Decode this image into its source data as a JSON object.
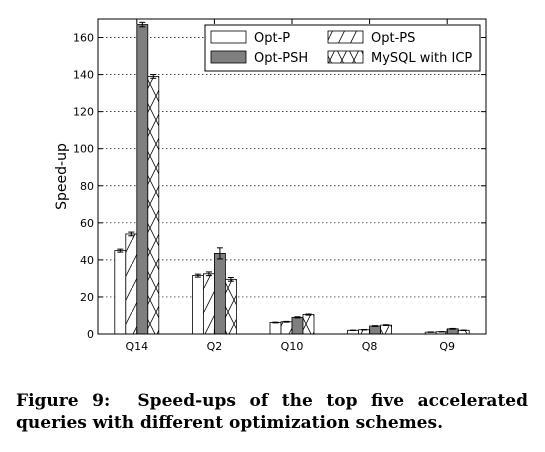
{
  "caption": {
    "label": "Figure 9:",
    "text": "Speed-ups of the top five accelerated queries with different optimization schemes."
  },
  "chart_data": {
    "type": "bar",
    "title": "",
    "xlabel": "",
    "ylabel": "Speed-up",
    "ylim": [
      0,
      170
    ],
    "yticks": [
      0,
      20,
      40,
      60,
      80,
      100,
      120,
      140,
      160
    ],
    "grid": true,
    "legend_position": "top-right",
    "categories": [
      "Q14",
      "Q2",
      "Q10",
      "Q8",
      "Q9"
    ],
    "series": [
      {
        "name": "Opt-P",
        "fill": "#ffffff",
        "pattern": "none",
        "values": [
          45,
          31.5,
          6.2,
          2.0,
          1.0
        ],
        "errors": [
          0.8,
          0.8,
          0.2,
          0.1,
          0.1
        ]
      },
      {
        "name": "Opt-PS",
        "fill": "#ffffff",
        "pattern": "diagonal",
        "values": [
          54,
          32.5,
          6.6,
          2.3,
          1.2
        ],
        "errors": [
          1.0,
          1.0,
          0.2,
          0.1,
          0.1
        ]
      },
      {
        "name": "Opt-PSH",
        "fill": "#7f7f7f",
        "pattern": "none",
        "values": [
          167,
          43.5,
          9.0,
          4.3,
          2.8
        ],
        "errors": [
          1.2,
          3.0,
          0.3,
          0.2,
          0.2
        ]
      },
      {
        "name": "MySQL with ICP",
        "fill": "#ffffff",
        "pattern": "crosshatch",
        "values": [
          139,
          29.5,
          10.5,
          4.8,
          2.0
        ],
        "errors": [
          1.0,
          1.0,
          0.3,
          0.2,
          0.1
        ]
      }
    ]
  }
}
